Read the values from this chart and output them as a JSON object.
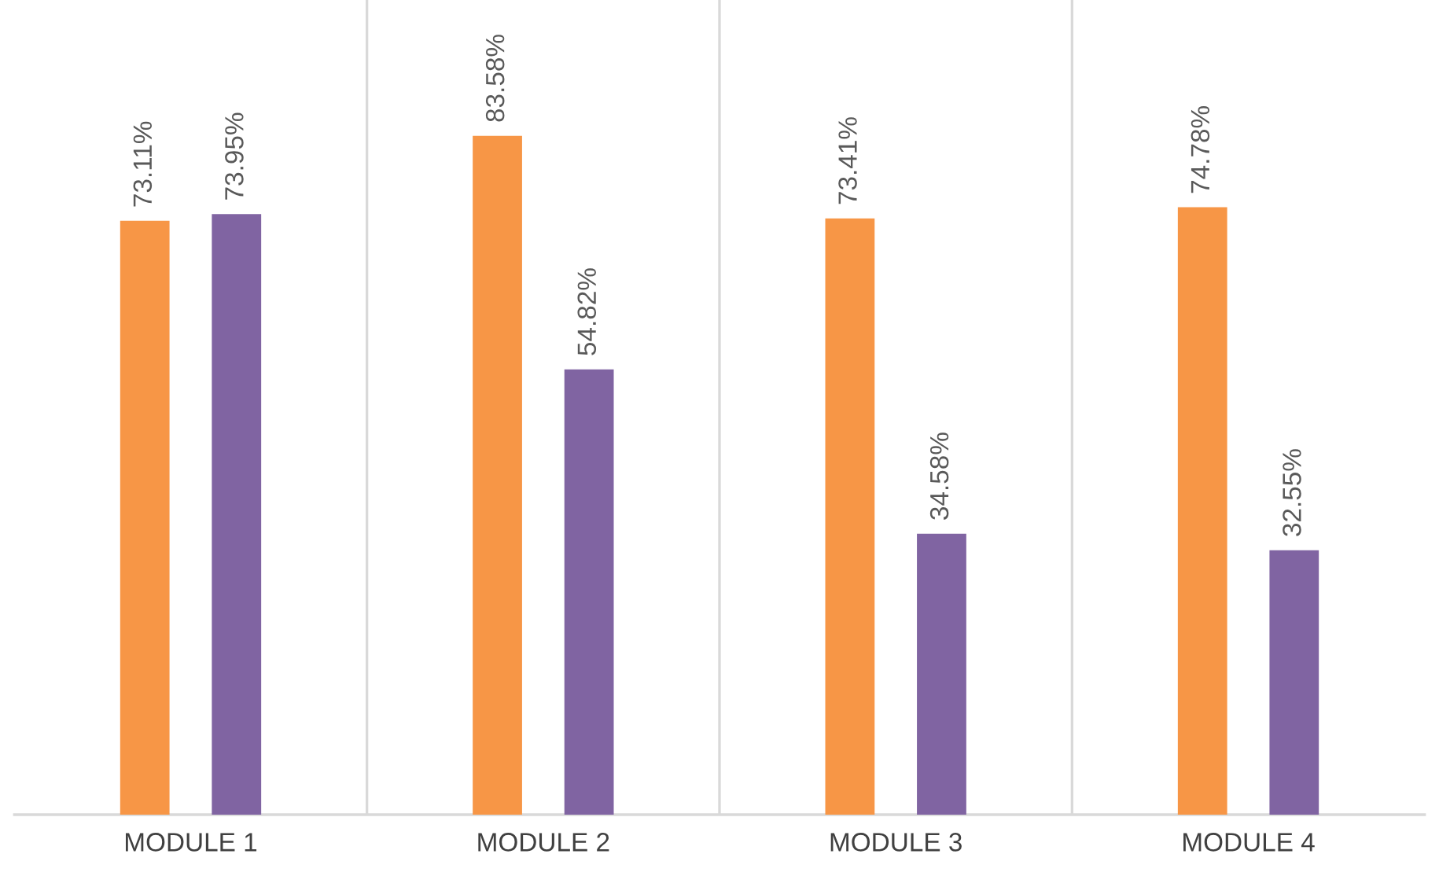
{
  "chart_data": {
    "type": "bar",
    "categories": [
      "MODULE 1",
      "MODULE 2",
      "MODULE 3",
      "MODULE 4"
    ],
    "series": [
      {
        "color": "#f79646",
        "values": [
          73.11,
          83.58,
          73.41,
          74.78
        ],
        "value_labels": [
          "73.11%",
          "83.58%",
          "73.41%",
          "74.78%"
        ]
      },
      {
        "color": "#8064a2",
        "values": [
          73.95,
          54.82,
          34.58,
          32.55
        ],
        "value_labels": [
          "73.95%",
          "54.82%",
          "34.58%",
          "32.55%"
        ]
      }
    ],
    "grid": "x",
    "legend": false,
    "tick_labels": "x"
  }
}
